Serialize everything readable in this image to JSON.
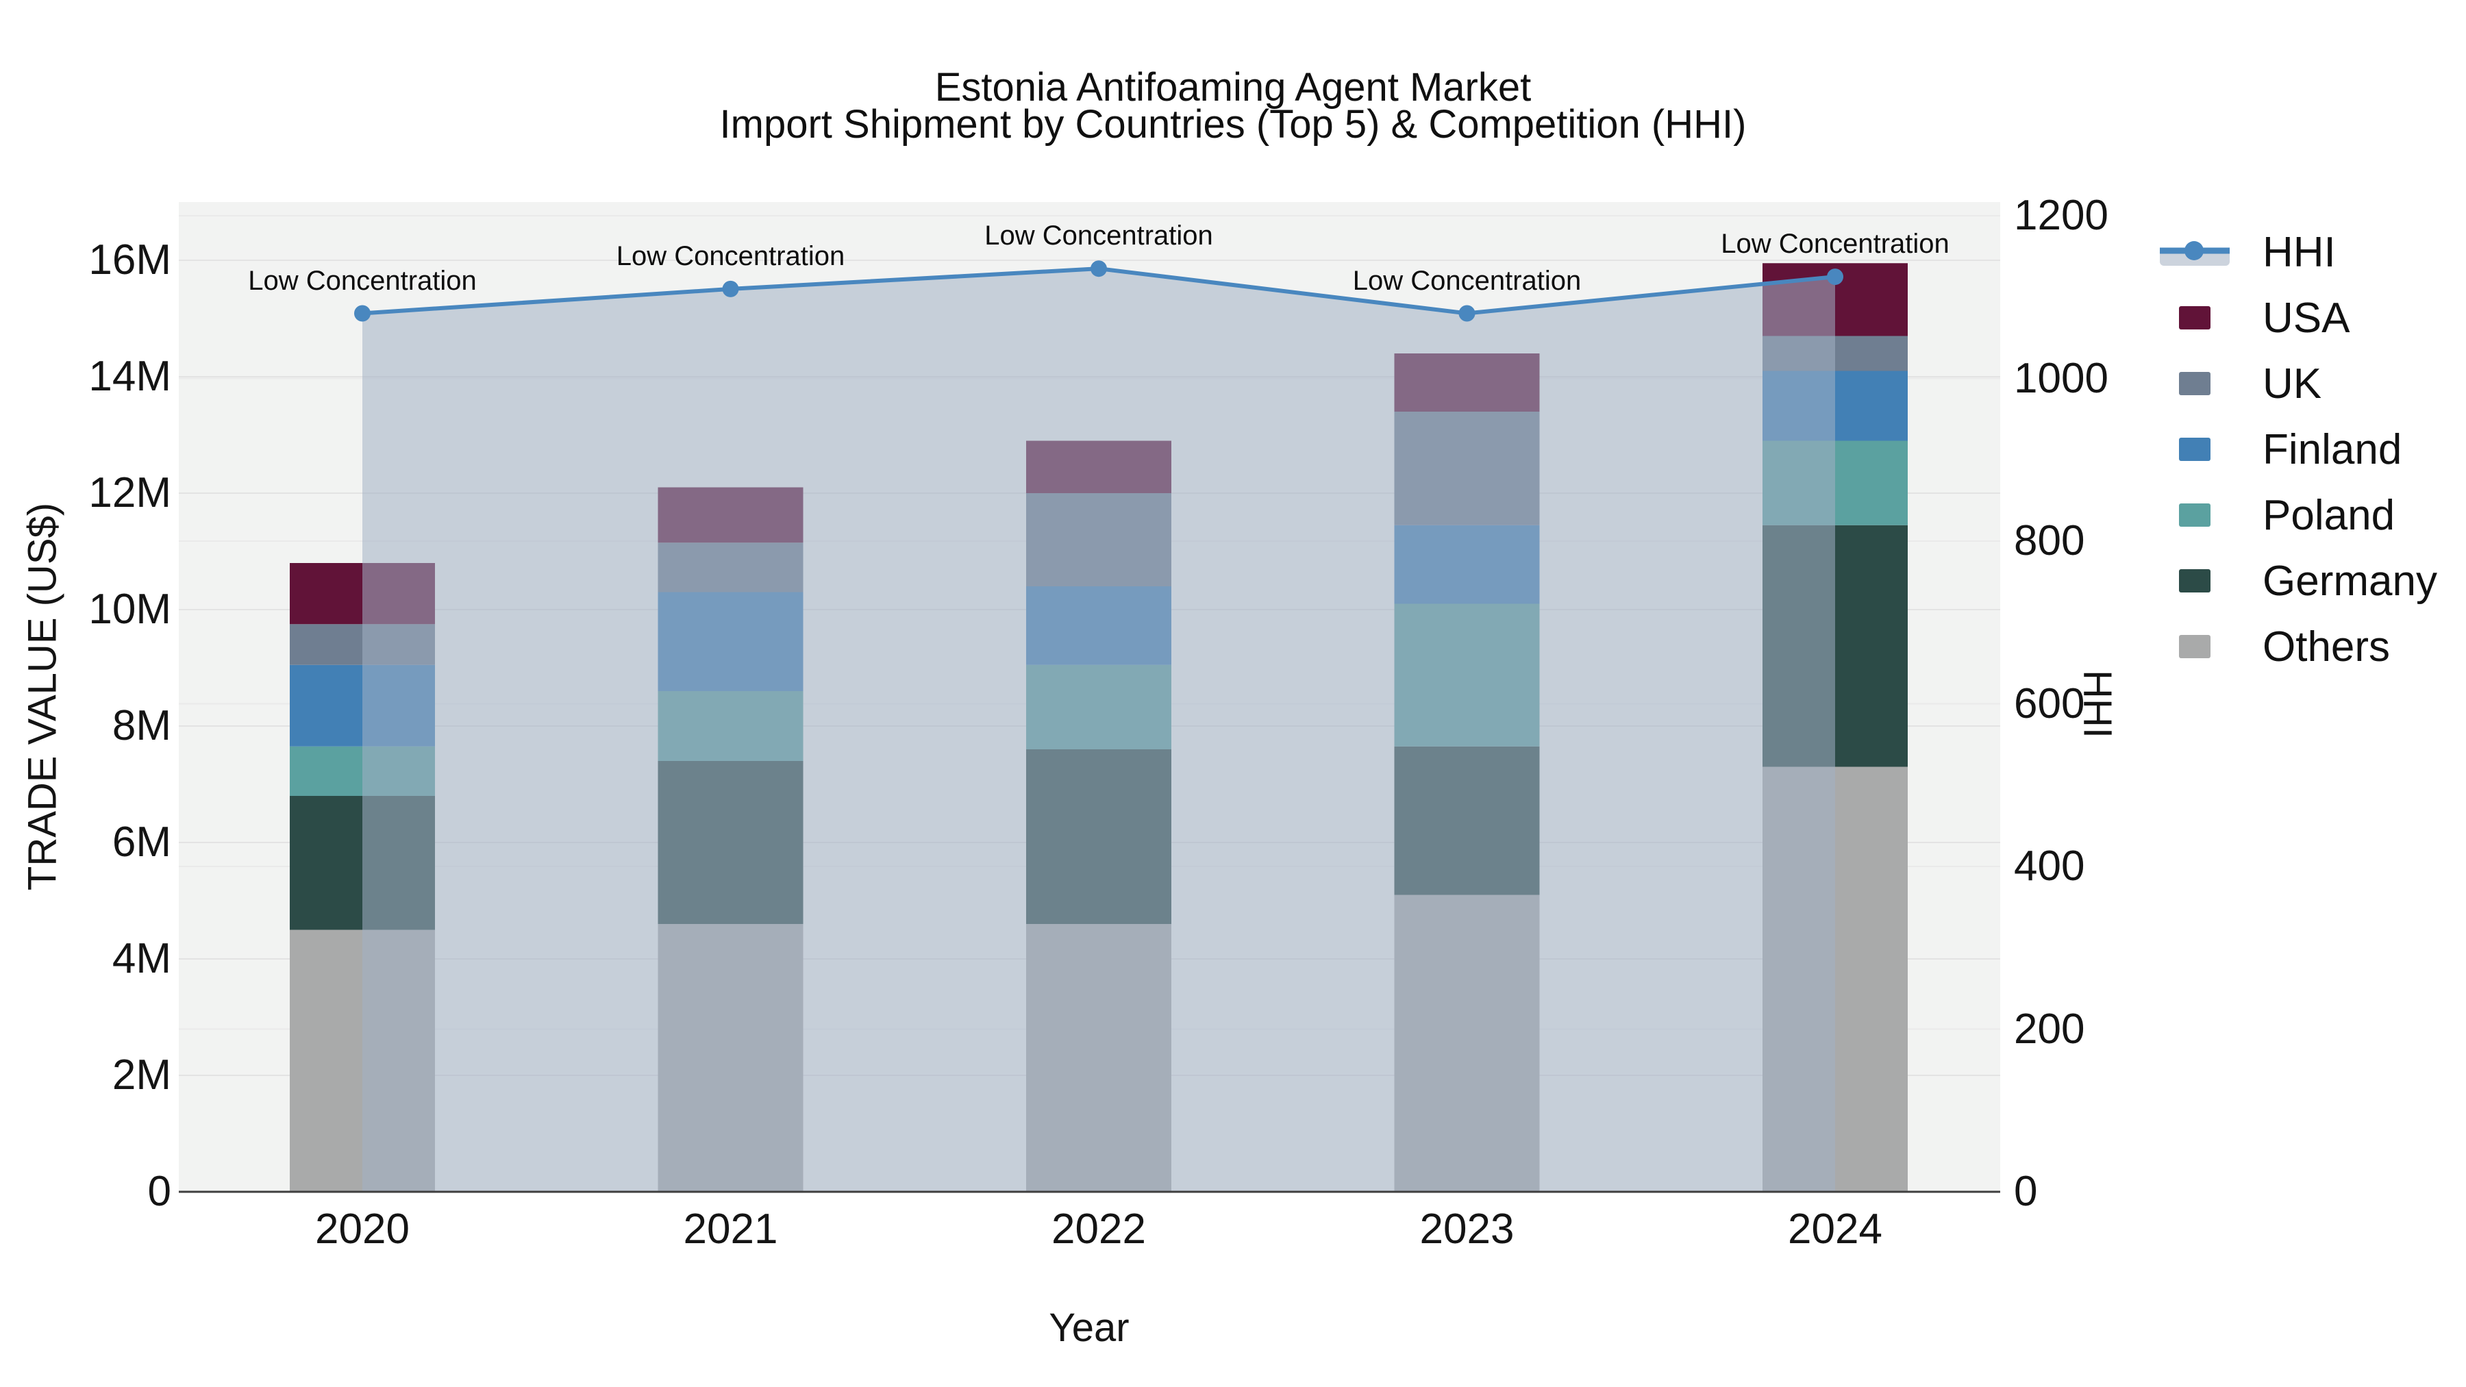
{
  "title": {
    "line1": "Estonia Antifoaming Agent Market",
    "line2": "Import Shipment by Countries (Top 5) & Competition (HHI)"
  },
  "chart_data": {
    "type": "bar",
    "subtype": "stacked-bars-with-line-overlay",
    "title": "Estonia Antifoaming Agent Market — Import Shipment by Countries (Top 5) & Competition (HHI)",
    "categories": [
      "2020",
      "2021",
      "2022",
      "2023",
      "2024"
    ],
    "xlabel": "Year",
    "ylabel_left": "TRADE VALUE (US$)",
    "ylabel_right": "HHI",
    "ylim_left": [
      0,
      17000000
    ],
    "ylim_right": [
      0,
      1217
    ],
    "grid": true,
    "legend_position": "right",
    "y_left_ticks": [
      "0",
      "2M",
      "4M",
      "6M",
      "8M",
      "10M",
      "12M",
      "14M",
      "16M"
    ],
    "y_right_ticks": [
      "0",
      "200",
      "400",
      "600",
      "800",
      "1000",
      "1200"
    ],
    "series": [
      {
        "name": "Others",
        "color": "#a9aaaa",
        "values": [
          4500000,
          4600000,
          4600000,
          5100000,
          7300000
        ]
      },
      {
        "name": "Germany",
        "color": "#2c4b47",
        "values": [
          2300000,
          2800000,
          3000000,
          2550000,
          4150000
        ]
      },
      {
        "name": "Poland",
        "color": "#5ba1a0",
        "values": [
          850000,
          1200000,
          1450000,
          2450000,
          1450000
        ]
      },
      {
        "name": "Finland",
        "color": "#4280b5",
        "values": [
          1400000,
          1700000,
          1350000,
          1350000,
          1200000
        ]
      },
      {
        "name": "UK",
        "color": "#6f7e91",
        "values": [
          700000,
          850000,
          1600000,
          1950000,
          600000
        ]
      },
      {
        "name": "USA",
        "color": "#611338",
        "values": [
          1050000,
          950000,
          900000,
          1000000,
          1250000
        ]
      }
    ],
    "totals": [
      10800000,
      12100000,
      12900000,
      14400000,
      15950000
    ],
    "line_series": {
      "name": "HHI",
      "color": "#4987bf",
      "area_fill": "rgba(163,176,197,0.55)",
      "marker": "circle",
      "values": [
        1080,
        1110,
        1135,
        1080,
        1125
      ]
    },
    "annotations": [
      {
        "text": "Low Concentration",
        "category": "2020"
      },
      {
        "text": "Low Concentration",
        "category": "2021"
      },
      {
        "text": "Low Concentration",
        "category": "2022"
      },
      {
        "text": "Low Concentration",
        "category": "2023"
      },
      {
        "text": "Low Concentration",
        "category": "2024"
      }
    ]
  },
  "axes": {
    "x_title": "Year",
    "y_left_title": "TRADE VALUE (US$)",
    "y_right_title": "HHI"
  },
  "legend": {
    "items": [
      {
        "label": "HHI",
        "type": "line"
      },
      {
        "label": "USA",
        "type": "swatch",
        "color": "#611338"
      },
      {
        "label": "UK",
        "type": "swatch",
        "color": "#6f7e91"
      },
      {
        "label": "Finland",
        "type": "swatch",
        "color": "#4280b5"
      },
      {
        "label": "Poland",
        "type": "swatch",
        "color": "#5ba1a0"
      },
      {
        "label": "Germany",
        "type": "swatch",
        "color": "#2c4b47"
      },
      {
        "label": "Others",
        "type": "swatch",
        "color": "#a9aaaa"
      }
    ]
  },
  "style": {
    "figure_bg": "#ffffff",
    "plot_bg": "#f2f3f2",
    "grid_major": "#e3e3e3",
    "grid_minor": "#eaeaea",
    "baseline": "#3f3f3f",
    "hhi_line": "#4987bf",
    "hhi_band": "rgba(163,176,197,0.55)",
    "legend_band": "#ccd3dd"
  }
}
